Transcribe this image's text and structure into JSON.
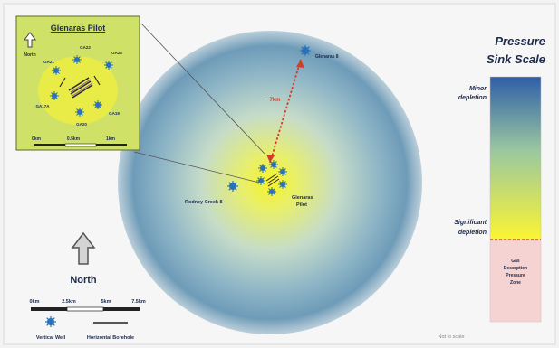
{
  "inset": {
    "title": "Glenaras Pilot",
    "north_label": "North",
    "wells": [
      "GA22",
      "GA21",
      "GA23",
      "GA17A",
      "GA19",
      "GA20"
    ],
    "scale_labels": [
      "0km",
      "0.5km",
      "1km"
    ]
  },
  "map": {
    "glenaras8_label": "Glenaras 8",
    "distance_label": "~7km",
    "rodney_label": "Rodney Creek 8",
    "pilot_label_line1": "Glenaras",
    "pilot_label_line2": "Pilot",
    "north_label": "North",
    "scale_labels": [
      "0km",
      "2.5km",
      "5km",
      "7.5km"
    ],
    "legend_vertical": "Vertical Well",
    "legend_horizontal": "Horizontal Borehole",
    "not_to_scale": "Not to scale"
  },
  "pressure_scale": {
    "title_line1": "Pressure",
    "title_line2": "Sink Scale",
    "minor_line1": "Minor",
    "minor_line2": "depletion",
    "significant_line1": "Significant",
    "significant_line2": "depletion",
    "zone_lines": [
      "Gas",
      "Desorption",
      "Pressure",
      "Zone"
    ]
  },
  "colors": {
    "well": "#2a72b8",
    "arrow": "#d83a2a",
    "inset_bg": "#cfe267"
  }
}
